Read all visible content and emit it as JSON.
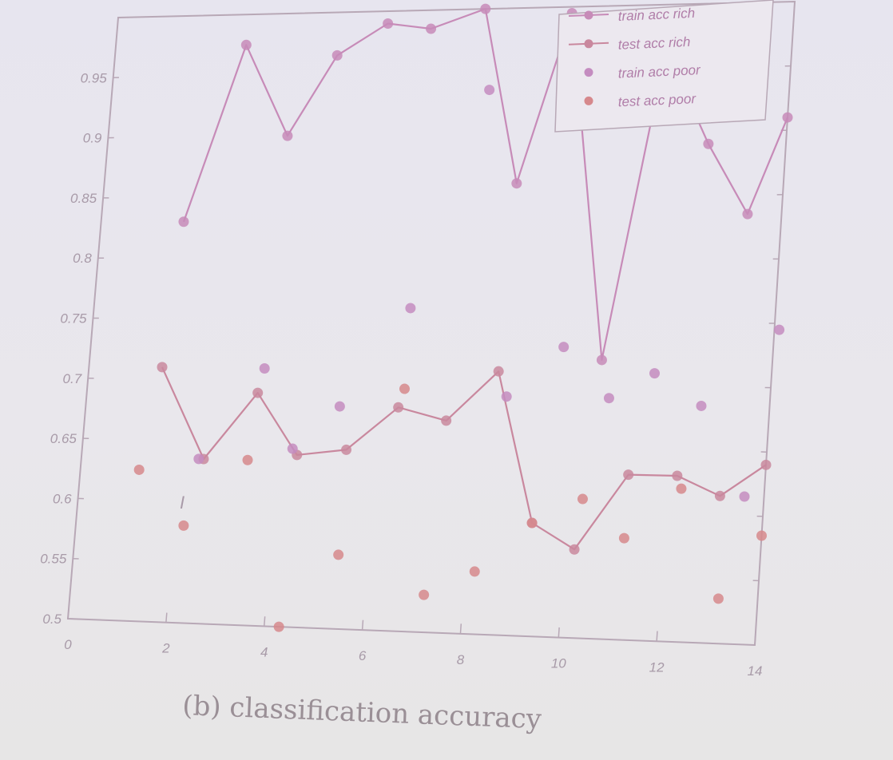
{
  "chart_data": {
    "type": "line",
    "caption": "(b) classification accuracy",
    "xlim": [
      0,
      14
    ],
    "ylim": [
      0.5,
      1.0
    ],
    "xticks": [
      "0",
      "2",
      "4",
      "6",
      "8",
      "10",
      "12",
      "14"
    ],
    "yticks": [
      "0.5",
      "0.55",
      "0.6",
      "0.65",
      "0.7",
      "0.75",
      "0.8",
      "0.85",
      "0.9",
      "0.95"
    ],
    "annotation": "I",
    "legend_position": "top-right",
    "grid": false,
    "series": [
      {
        "name": "train acc rich",
        "style": "line-marker",
        "color": "#c78bb8",
        "x": [
          1.7,
          2.7,
          3.7,
          4.6,
          5.6,
          6.5,
          7.6,
          8.5,
          9.4,
          10.5,
          11.4,
          12.4,
          13.3,
          14.0
        ],
        "y": [
          0.83,
          0.975,
          0.9,
          0.965,
          0.99,
          0.985,
          1.0,
          0.86,
          0.995,
          0.72,
          0.965,
          0.89,
          0.835,
          0.91
        ]
      },
      {
        "name": "test acc rich",
        "style": "line-marker",
        "color": "#c9889e",
        "x": [
          1.5,
          2.5,
          3.5,
          4.4,
          5.4,
          6.4,
          7.4,
          8.4,
          9.3,
          10.2,
          11.2,
          12.2,
          13.1,
          14.0
        ],
        "y": [
          0.71,
          0.635,
          0.69,
          0.64,
          0.645,
          0.68,
          0.67,
          0.71,
          0.59,
          0.57,
          0.63,
          0.63,
          0.615,
          0.64
        ]
      },
      {
        "name": "train acc poor",
        "style": "marker",
        "color": "#c48cc0",
        "x": [
          2.4,
          3.6,
          4.3,
          5.2,
          6.5,
          7.8,
          8.6,
          9.7,
          10.7,
          11.6,
          12.6,
          13.6,
          14.1
        ],
        "y": [
          0.635,
          0.71,
          0.645,
          0.68,
          0.76,
          0.935,
          0.69,
          0.73,
          0.69,
          0.71,
          0.685,
          0.615,
          0.745
        ]
      },
      {
        "name": "test acc poor",
        "style": "marker",
        "color": "#d6888c",
        "x": [
          1.2,
          2.2,
          3.4,
          4.3,
          5.4,
          6.5,
          7.2,
          8.2,
          9.3,
          10.3,
          11.2,
          12.3,
          13.2,
          14.0
        ],
        "y": [
          0.625,
          0.58,
          0.635,
          0.5,
          0.56,
          0.695,
          0.53,
          0.55,
          0.59,
          0.61,
          0.58,
          0.62,
          0.535,
          0.585
        ]
      }
    ]
  }
}
